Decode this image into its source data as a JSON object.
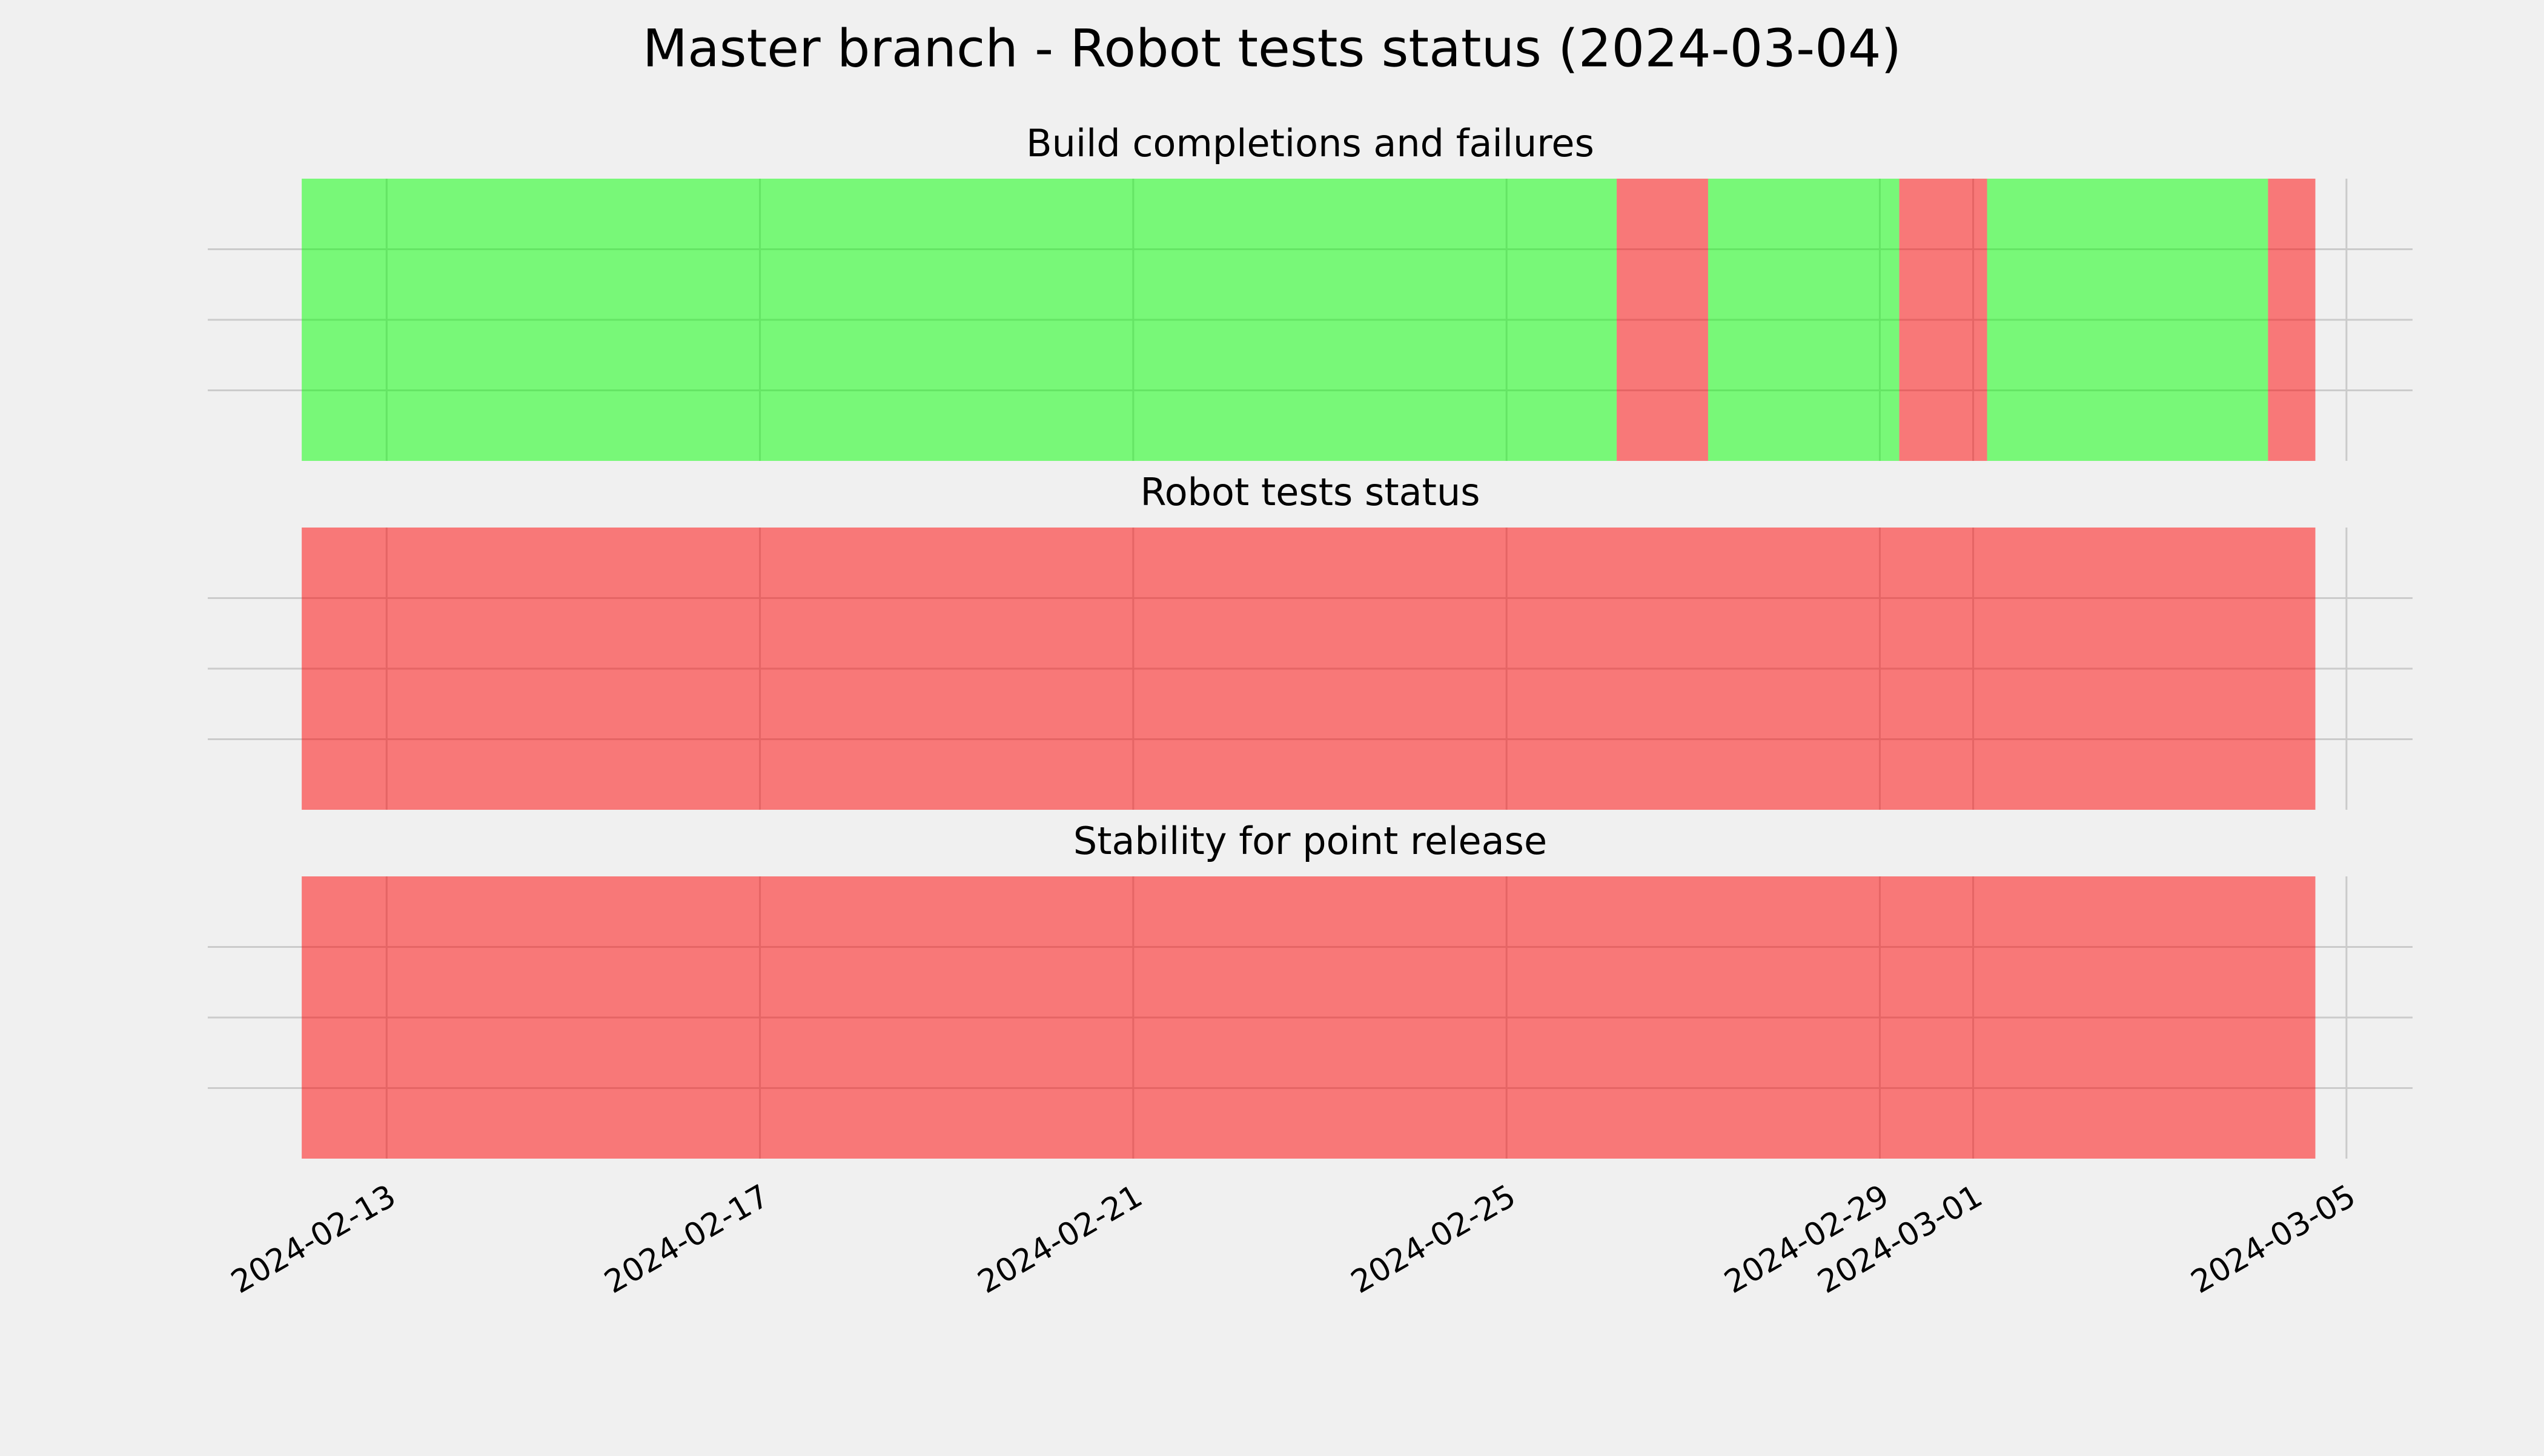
{
  "title": "Master branch - Robot tests status (2024-03-04)",
  "chart_data": [
    {
      "type": "timeline",
      "title": "Build completions and failures",
      "xlim": [
        "2024-02-11T02:00",
        "2024-03-05T17:00"
      ],
      "ylim": [
        0,
        1
      ],
      "yticks": [
        0.25,
        0.5,
        0.75
      ],
      "xticks": [
        "2024-02-13",
        "2024-02-17",
        "2024-02-21",
        "2024-02-25",
        "2024-02-29",
        "2024-03-01",
        "2024-03-05"
      ],
      "show_xtick_labels": false,
      "grid": true,
      "alpha": 0.5,
      "segments": [
        {
          "start": "2024-02-12T02:10",
          "end": "2024-02-26T04:20",
          "color": "#00ff00"
        },
        {
          "start": "2024-02-26T04:20",
          "end": "2024-02-27T03:50",
          "color": "#ff0000"
        },
        {
          "start": "2024-02-27T03:50",
          "end": "2024-02-29T05:00",
          "color": "#00ff00"
        },
        {
          "start": "2024-02-29T05:00",
          "end": "2024-03-01T03:35",
          "color": "#ff0000"
        },
        {
          "start": "2024-03-01T03:35",
          "end": "2024-03-04T03:50",
          "color": "#00ff00"
        },
        {
          "start": "2024-03-04T03:50",
          "end": "2024-03-04T16:00",
          "color": "#ff0000"
        }
      ]
    },
    {
      "type": "timeline",
      "title": "Robot tests status",
      "xlim": [
        "2024-02-11T02:00",
        "2024-03-05T17:00"
      ],
      "ylim": [
        0,
        1
      ],
      "yticks": [
        0.25,
        0.5,
        0.75
      ],
      "xticks": [
        "2024-02-13",
        "2024-02-17",
        "2024-02-21",
        "2024-02-25",
        "2024-02-29",
        "2024-03-01",
        "2024-03-05"
      ],
      "show_xtick_labels": false,
      "grid": true,
      "alpha": 0.5,
      "segments": [
        {
          "start": "2024-02-12T02:10",
          "end": "2024-03-04T16:00",
          "color": "#ff0000"
        }
      ]
    },
    {
      "type": "timeline",
      "title": "Stability for point release",
      "xlim": [
        "2024-02-11T02:00",
        "2024-03-05T17:00"
      ],
      "ylim": [
        0,
        1
      ],
      "yticks": [
        0.25,
        0.5,
        0.75
      ],
      "xticks": [
        "2024-02-13",
        "2024-02-17",
        "2024-02-21",
        "2024-02-25",
        "2024-02-29",
        "2024-03-01",
        "2024-03-05"
      ],
      "show_xtick_labels": true,
      "grid": true,
      "alpha": 0.5,
      "segments": [
        {
          "start": "2024-02-12T02:10",
          "end": "2024-03-04T16:00",
          "color": "#ff0000"
        }
      ]
    }
  ]
}
